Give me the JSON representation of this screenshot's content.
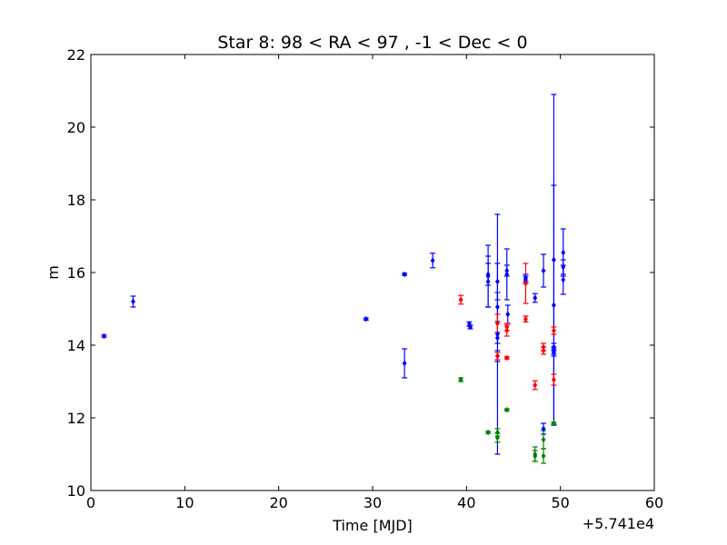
{
  "chart_data": {
    "type": "scatter",
    "title": "Star 8: 98 < RA < 97 , -1 < Dec < 0",
    "xlabel": "Time [MJD]",
    "ylabel": "m",
    "x_offset_label": "+5.741e4",
    "xlim": [
      0,
      60
    ],
    "ylim": [
      10,
      22
    ],
    "xticks": [
      0,
      10,
      20,
      30,
      40,
      50,
      60
    ],
    "yticks": [
      10,
      12,
      14,
      16,
      18,
      20,
      22
    ],
    "grid": false,
    "legend": "none",
    "series": [
      {
        "color": "#0000ff",
        "points": [
          {
            "x": 1.4,
            "y": 14.25,
            "err": 0.03
          },
          {
            "x": 4.5,
            "y": 15.2,
            "err": 0.15
          },
          {
            "x": 29.3,
            "y": 14.72,
            "err": 0.03
          },
          {
            "x": 33.4,
            "y": 15.95,
            "err": 0.03
          },
          {
            "x": 33.4,
            "y": 13.5,
            "err": 0.4
          },
          {
            "x": 36.4,
            "y": 16.33,
            "err": 0.2
          },
          {
            "x": 40.3,
            "y": 14.58,
            "err": 0.06
          },
          {
            "x": 40.4,
            "y": 14.5,
            "err": 0.05
          },
          {
            "x": 42.3,
            "y": 15.9,
            "err": 0.85
          },
          {
            "x": 42.3,
            "y": 15.75,
            "err": 0.7
          },
          {
            "x": 42.3,
            "y": 15.95,
            "err": 0.3
          },
          {
            "x": 43.3,
            "y": 15.75,
            "err": 0.5
          },
          {
            "x": 43.3,
            "y": 14.3,
            "err": 3.3
          },
          {
            "x": 43.3,
            "y": 14.2,
            "err": 0.15
          },
          {
            "x": 43.3,
            "y": 13.7,
            "err": 0.15
          },
          {
            "x": 43.3,
            "y": 15.05,
            "err": 0.4
          },
          {
            "x": 44.3,
            "y": 15.95,
            "err": 0.7
          },
          {
            "x": 44.3,
            "y": 16.05,
            "err": 0.15
          },
          {
            "x": 44.4,
            "y": 14.85,
            "err": 0.25
          },
          {
            "x": 46.3,
            "y": 15.8,
            "err": 0.1
          },
          {
            "x": 46.3,
            "y": 15.85,
            "err": 0.1
          },
          {
            "x": 47.3,
            "y": 15.3,
            "err": 0.12
          },
          {
            "x": 48.2,
            "y": 16.05,
            "err": 0.45
          },
          {
            "x": 48.2,
            "y": 11.7,
            "err": 0.15
          },
          {
            "x": 49.3,
            "y": 16.35,
            "err": 4.55
          },
          {
            "x": 49.3,
            "y": 15.1,
            "err": 3.3
          },
          {
            "x": 49.3,
            "y": 13.95,
            "err": 0.1
          },
          {
            "x": 49.3,
            "y": 13.85,
            "err": 0.1
          },
          {
            "x": 49.3,
            "y": 13.8,
            "err": 0.1
          },
          {
            "x": 50.3,
            "y": 16.55,
            "err": 0.65
          },
          {
            "x": 50.3,
            "y": 16.15,
            "err": 0.2
          },
          {
            "x": 50.3,
            "y": 15.8,
            "err": 0.4
          }
        ]
      },
      {
        "color": "#ff0000",
        "points": [
          {
            "x": 39.4,
            "y": 15.25,
            "err": 0.12
          },
          {
            "x": 43.3,
            "y": 14.6,
            "err": 0.25
          },
          {
            "x": 43.3,
            "y": 13.7,
            "err": 0.1
          },
          {
            "x": 44.3,
            "y": 14.4,
            "err": 0.15
          },
          {
            "x": 44.3,
            "y": 14.5,
            "err": 0.1
          },
          {
            "x": 44.3,
            "y": 13.65,
            "err": 0.03
          },
          {
            "x": 46.3,
            "y": 15.7,
            "err": 0.55
          },
          {
            "x": 46.3,
            "y": 14.72,
            "err": 0.08
          },
          {
            "x": 47.3,
            "y": 12.9,
            "err": 0.12
          },
          {
            "x": 48.2,
            "y": 13.95,
            "err": 0.1
          },
          {
            "x": 48.2,
            "y": 13.85,
            "err": 0.1
          },
          {
            "x": 49.3,
            "y": 14.4,
            "err": 0.1
          },
          {
            "x": 49.3,
            "y": 13.05,
            "err": 0.15
          }
        ]
      },
      {
        "color": "#008000",
        "points": [
          {
            "x": 39.4,
            "y": 13.05,
            "err": 0.05
          },
          {
            "x": 42.3,
            "y": 11.6,
            "err": 0.03
          },
          {
            "x": 43.3,
            "y": 11.6,
            "err": 0.1
          },
          {
            "x": 43.3,
            "y": 11.45,
            "err": 0.12
          },
          {
            "x": 44.3,
            "y": 12.22,
            "err": 0.03
          },
          {
            "x": 47.3,
            "y": 11.0,
            "err": 0.2
          },
          {
            "x": 47.3,
            "y": 10.95,
            "err": 0.15
          },
          {
            "x": 48.2,
            "y": 11.4,
            "err": 0.25
          },
          {
            "x": 48.2,
            "y": 10.95,
            "err": 0.2
          },
          {
            "x": 49.3,
            "y": 11.85,
            "err": 0.03
          }
        ]
      }
    ]
  }
}
